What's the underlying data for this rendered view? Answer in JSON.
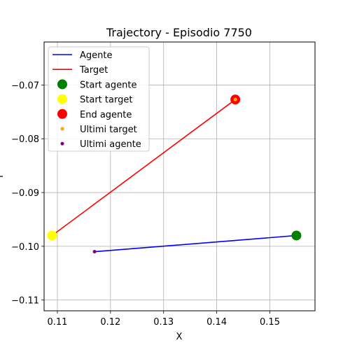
{
  "chart_data": {
    "type": "line",
    "title": "Trajectory - Episodio 7750",
    "xlabel": "X",
    "ylabel": "Y",
    "xlim": [
      0.1075,
      0.1585
    ],
    "ylim": [
      -0.112,
      -0.062
    ],
    "xticks": [
      0.11,
      0.12,
      0.13,
      0.14,
      0.15
    ],
    "yticks": [
      -0.07,
      -0.08,
      -0.09,
      -0.1,
      -0.11
    ],
    "xtick_labels": [
      "0.11",
      "0.12",
      "0.13",
      "0.14",
      "0.15"
    ],
    "ytick_labels": [
      "−0.07",
      "−0.08",
      "−0.09",
      "−0.10",
      "−0.11"
    ],
    "grid": true,
    "legend_position": "top-left",
    "series": [
      {
        "name": "Agente",
        "kind": "line",
        "color": "#0000ff",
        "x": [
          0.155,
          0.117
        ],
        "y": [
          -0.098,
          -0.101
        ]
      },
      {
        "name": "Target",
        "kind": "line",
        "color": "#ff0000",
        "x": [
          0.109,
          0.1435
        ],
        "y": [
          -0.098,
          -0.0727
        ]
      },
      {
        "name": "Start agente",
        "kind": "point",
        "size": "large",
        "color": "#008000",
        "x": [
          0.155
        ],
        "y": [
          -0.098
        ]
      },
      {
        "name": "Start target",
        "kind": "point",
        "size": "large",
        "color": "#ffff00",
        "x": [
          0.109
        ],
        "y": [
          -0.098
        ]
      },
      {
        "name": "End agente",
        "kind": "point",
        "size": "large",
        "color": "#ff0000",
        "x": [
          0.1435
        ],
        "y": [
          -0.0727
        ]
      },
      {
        "name": "Ultimi target",
        "kind": "point",
        "size": "small",
        "color": "#ffa500",
        "x": [
          0.1435
        ],
        "y": [
          -0.0727
        ]
      },
      {
        "name": "Ultimi agente",
        "kind": "point",
        "size": "small",
        "color": "#800080",
        "x": [
          0.117
        ],
        "y": [
          -0.101
        ]
      }
    ]
  }
}
